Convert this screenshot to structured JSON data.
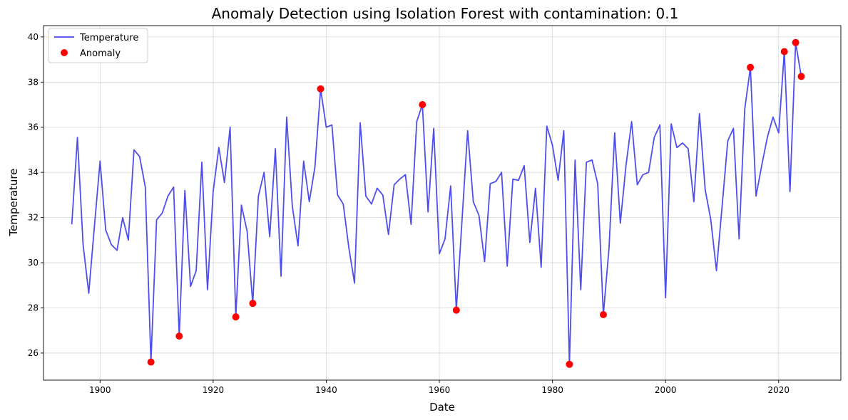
{
  "chart_data": {
    "type": "line",
    "title": "Anomaly Detection using Isolation Forest with contamination: 0.1",
    "xlabel": "Date",
    "ylabel": "Temperature",
    "xlim": [
      1890,
      2031
    ],
    "ylim": [
      24.8,
      40.5
    ],
    "xticks": [
      1900,
      1920,
      1940,
      1960,
      1980,
      2000,
      2020
    ],
    "yticks": [
      26,
      28,
      30,
      32,
      34,
      36,
      38,
      40
    ],
    "grid": true,
    "legend_position": "top-left",
    "series": [
      {
        "name": "Temperature",
        "kind": "line",
        "color": "#4444ee",
        "x": [
          1895,
          1896,
          1897,
          1898,
          1899,
          1900,
          1901,
          1902,
          1903,
          1904,
          1905,
          1906,
          1907,
          1908,
          1909,
          1910,
          1911,
          1912,
          1913,
          1914,
          1915,
          1916,
          1917,
          1918,
          1919,
          1920,
          1921,
          1922,
          1923,
          1924,
          1925,
          1926,
          1927,
          1928,
          1929,
          1930,
          1931,
          1932,
          1933,
          1934,
          1935,
          1936,
          1937,
          1938,
          1939,
          1940,
          1941,
          1942,
          1943,
          1944,
          1945,
          1946,
          1947,
          1948,
          1949,
          1950,
          1951,
          1952,
          1953,
          1954,
          1955,
          1956,
          1957,
          1958,
          1959,
          1960,
          1961,
          1962,
          1963,
          1964,
          1965,
          1966,
          1967,
          1968,
          1969,
          1970,
          1971,
          1972,
          1973,
          1974,
          1975,
          1976,
          1977,
          1978,
          1979,
          1980,
          1981,
          1982,
          1983,
          1984,
          1985,
          1986,
          1987,
          1988,
          1989,
          1990,
          1991,
          1992,
          1993,
          1994,
          1995,
          1996,
          1997,
          1998,
          1999,
          2000,
          2001,
          2002,
          2003,
          2004,
          2005,
          2006,
          2007,
          2008,
          2009,
          2010,
          2011,
          2012,
          2013,
          2014,
          2015,
          2016,
          2017,
          2018,
          2019,
          2020,
          2021,
          2022,
          2023,
          2024
        ],
        "y": [
          31.7,
          35.55,
          30.8,
          28.65,
          31.6,
          34.5,
          31.45,
          30.8,
          30.55,
          32.0,
          31.0,
          35.0,
          34.7,
          33.35,
          25.6,
          31.9,
          32.2,
          32.95,
          33.35,
          26.75,
          33.2,
          28.95,
          29.65,
          34.45,
          28.8,
          33.15,
          35.1,
          33.55,
          36.0,
          27.6,
          32.55,
          31.4,
          28.2,
          32.95,
          34.0,
          31.15,
          35.05,
          29.4,
          36.45,
          32.5,
          30.75,
          34.5,
          32.7,
          34.25,
          37.7,
          36.0,
          36.1,
          33.0,
          32.6,
          30.65,
          29.1,
          36.2,
          32.95,
          32.6,
          33.3,
          33.0,
          31.25,
          33.45,
          33.7,
          33.9,
          31.7,
          36.25,
          37.0,
          32.25,
          35.95,
          30.4,
          31.05,
          33.4,
          27.9,
          31.85,
          35.85,
          32.7,
          32.1,
          30.05,
          33.5,
          33.6,
          34.0,
          29.85,
          33.7,
          33.65,
          34.3,
          30.9,
          33.3,
          29.8,
          36.05,
          35.2,
          33.65,
          35.85,
          25.5,
          34.55,
          28.8,
          34.45,
          34.55,
          33.5,
          27.7,
          30.65,
          35.75,
          31.75,
          34.3,
          36.25,
          33.45,
          33.9,
          34.0,
          35.55,
          36.1,
          28.45,
          36.15,
          35.1,
          35.3,
          35.05,
          32.7,
          36.6,
          33.25,
          31.9,
          29.65,
          32.5,
          35.4,
          35.95,
          31.05,
          36.8,
          38.65,
          32.95,
          34.3,
          35.55,
          36.45,
          35.75,
          39.35,
          33.15,
          39.75,
          38.25
        ]
      },
      {
        "name": "Anomaly",
        "kind": "scatter",
        "color": "#ff0000",
        "x": [
          1909,
          1914,
          1924,
          1927,
          1939,
          1957,
          1963,
          1983,
          1989,
          2015,
          2021,
          2023,
          2024
        ],
        "y": [
          25.6,
          26.75,
          27.6,
          28.2,
          37.7,
          37.0,
          27.9,
          25.5,
          27.7,
          38.65,
          39.35,
          39.75,
          38.25
        ]
      }
    ]
  }
}
